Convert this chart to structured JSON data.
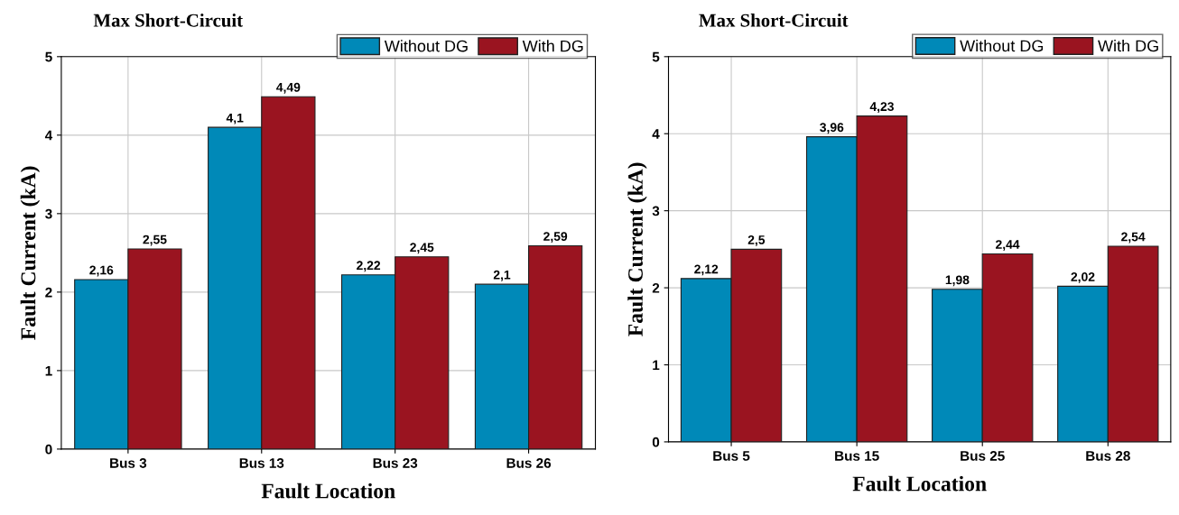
{
  "chart_data": [
    {
      "type": "bar",
      "title": "Max Short-Circuit",
      "xlabel": "Fault Location",
      "ylabel": "Fault Current (kA)",
      "categories": [
        "Bus 3",
        "Bus 13",
        "Bus 23",
        "Bus 26"
      ],
      "series": [
        {
          "name": "Without DG",
          "color": "#0089b8",
          "values": [
            2.16,
            4.1,
            2.22,
            2.1
          ],
          "value_labels": [
            "2,16",
            "4,1",
            "2,22",
            "2,1"
          ]
        },
        {
          "name": "With DG",
          "color": "#9a1420",
          "values": [
            2.55,
            4.49,
            2.45,
            2.59
          ],
          "value_labels": [
            "2,55",
            "4,49",
            "2,45",
            "2,59"
          ]
        }
      ],
      "ylim": [
        0,
        5
      ],
      "yticks": [
        0,
        1,
        2,
        3,
        4,
        5
      ],
      "grid": true,
      "legend": "top right"
    },
    {
      "type": "bar",
      "title": "Max Short-Circuit",
      "xlabel": "Fault Location",
      "ylabel": "Fault Current (kA)",
      "categories": [
        "Bus 5",
        "Bus 15",
        "Bus 25",
        "Bus 28"
      ],
      "series": [
        {
          "name": "Without DG",
          "color": "#0089b8",
          "values": [
            2.12,
            3.96,
            1.98,
            2.02
          ],
          "value_labels": [
            "2,12",
            "3,96",
            "1,98",
            "2,02"
          ]
        },
        {
          "name": "With DG",
          "color": "#9a1420",
          "values": [
            2.5,
            4.23,
            2.44,
            2.54
          ],
          "value_labels": [
            "2,5",
            "4,23",
            "2,44",
            "2,54"
          ]
        }
      ],
      "ylim": [
        0,
        5
      ],
      "yticks": [
        0,
        1,
        2,
        3,
        4,
        5
      ],
      "grid": true,
      "legend": "top right"
    }
  ]
}
